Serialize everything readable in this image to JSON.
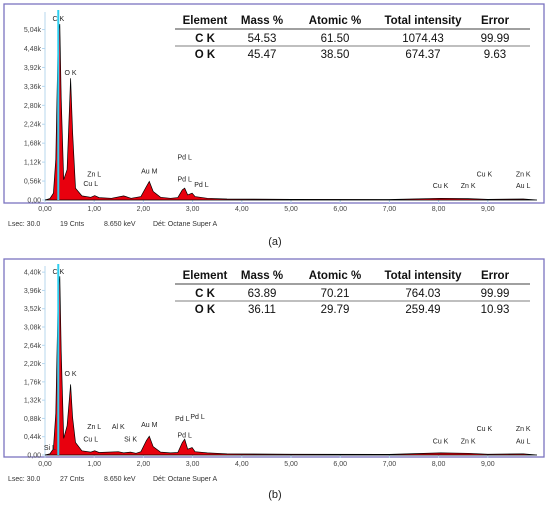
{
  "chart_data": [
    {
      "type": "area",
      "panel_label": "(a)",
      "footer": {
        "lsec": "Lsec: 30.0",
        "cnts": "19 Cnts",
        "kev": "8.650 keV",
        "det": "Dét: Octane Super A"
      },
      "x_ticks": [
        "0,00",
        "1,00",
        "2,00",
        "3,00",
        "4,00",
        "5,00",
        "6,00",
        "7,00",
        "8,00",
        "9,00"
      ],
      "y_ticks": [
        "0,00",
        "0,56k",
        "1,12k",
        "1,68k",
        "2,24k",
        "2,80k",
        "3,36k",
        "3,92k",
        "4,48k",
        "5,04k"
      ],
      "xlim": [
        0,
        10
      ],
      "ylim": [
        0,
        5.5
      ],
      "spectrum": [
        [
          0.0,
          0.0
        ],
        [
          0.1,
          0.04
        ],
        [
          0.17,
          0.2
        ],
        [
          0.22,
          1.2
        ],
        [
          0.27,
          5.0
        ],
        [
          0.3,
          5.2
        ],
        [
          0.33,
          3.0
        ],
        [
          0.38,
          0.6
        ],
        [
          0.45,
          0.9
        ],
        [
          0.52,
          3.6
        ],
        [
          0.56,
          2.0
        ],
        [
          0.62,
          0.35
        ],
        [
          0.75,
          0.12
        ],
        [
          0.93,
          0.08
        ],
        [
          1.01,
          0.13
        ],
        [
          1.1,
          0.07
        ],
        [
          1.35,
          0.05
        ],
        [
          1.6,
          0.12
        ],
        [
          1.75,
          0.05
        ],
        [
          1.95,
          0.1
        ],
        [
          2.06,
          0.4
        ],
        [
          2.12,
          0.55
        ],
        [
          2.2,
          0.25
        ],
        [
          2.35,
          0.08
        ],
        [
          2.55,
          0.05
        ],
        [
          2.7,
          0.07
        ],
        [
          2.79,
          0.3
        ],
        [
          2.84,
          0.35
        ],
        [
          2.9,
          0.15
        ],
        [
          2.99,
          0.2
        ],
        [
          3.05,
          0.1
        ],
        [
          3.3,
          0.05
        ],
        [
          3.7,
          0.03
        ],
        [
          5.0,
          0.02
        ],
        [
          7.0,
          0.015
        ],
        [
          8.04,
          0.05
        ],
        [
          8.6,
          0.04
        ],
        [
          9.0,
          0.02
        ],
        [
          9.72,
          0.03
        ],
        [
          10.0,
          0.0
        ]
      ],
      "peak_labels": [
        {
          "text": "C K",
          "x": 0.27,
          "y": 5.3
        },
        {
          "text": "O K",
          "x": 0.52,
          "y": 3.7
        },
        {
          "text": "Zn L",
          "x": 1.0,
          "y": 0.7
        },
        {
          "text": "Cu L",
          "x": 0.93,
          "y": 0.42
        },
        {
          "text": "Au M",
          "x": 2.12,
          "y": 0.78
        },
        {
          "text": "Pd L",
          "x": 2.84,
          "y": 1.2
        },
        {
          "text": "Pd L",
          "x": 2.84,
          "y": 0.55
        },
        {
          "text": "Pd L",
          "x": 3.18,
          "y": 0.38
        },
        {
          "text": "Cu K",
          "x": 8.04,
          "y": 0.35
        },
        {
          "text": "Zn K",
          "x": 8.6,
          "y": 0.35
        },
        {
          "text": "Cu K",
          "x": 8.93,
          "y": 0.7
        },
        {
          "text": "Zn K",
          "x": 9.72,
          "y": 0.7
        },
        {
          "text": "Au L",
          "x": 9.72,
          "y": 0.35
        }
      ],
      "table": {
        "headers": [
          "Element",
          "Mass %",
          "Atomic %",
          "Total intensity",
          "Error"
        ],
        "rows": [
          [
            "C K",
            "54.53",
            "61.50",
            "1074.43",
            "99.99"
          ],
          [
            "O K",
            "45.47",
            "38.50",
            "674.37",
            "9.63"
          ]
        ]
      }
    },
    {
      "type": "area",
      "panel_label": "(b)",
      "footer": {
        "lsec": "Lsec: 30.0",
        "cnts": "27 Cnts",
        "kev": "8.650 keV",
        "det": "Dét: Octane Super A"
      },
      "x_ticks": [
        "0,00",
        "1,00",
        "2,00",
        "3,00",
        "4,00",
        "5,00",
        "6,00",
        "7,00",
        "8,00",
        "9,00"
      ],
      "y_ticks": [
        "0,00",
        "0,44k",
        "0,88k",
        "1,32k",
        "1,76k",
        "2,20k",
        "2,64k",
        "3,08k",
        "3,52k",
        "3,96k",
        "4,40k"
      ],
      "xlim": [
        0,
        10
      ],
      "ylim": [
        0,
        4.5
      ],
      "spectrum": [
        [
          0.0,
          0.0
        ],
        [
          0.1,
          0.03
        ],
        [
          0.17,
          0.15
        ],
        [
          0.22,
          1.0
        ],
        [
          0.27,
          4.0
        ],
        [
          0.3,
          4.3
        ],
        [
          0.33,
          2.5
        ],
        [
          0.38,
          0.4
        ],
        [
          0.45,
          0.7
        ],
        [
          0.52,
          1.7
        ],
        [
          0.56,
          0.9
        ],
        [
          0.62,
          0.3
        ],
        [
          0.75,
          0.1
        ],
        [
          0.93,
          0.07
        ],
        [
          1.01,
          0.1
        ],
        [
          1.1,
          0.06
        ],
        [
          1.49,
          0.08
        ],
        [
          1.6,
          0.05
        ],
        [
          1.74,
          0.07
        ],
        [
          1.85,
          0.04
        ],
        [
          1.95,
          0.08
        ],
        [
          2.06,
          0.35
        ],
        [
          2.12,
          0.45
        ],
        [
          2.2,
          0.2
        ],
        [
          2.35,
          0.07
        ],
        [
          2.55,
          0.05
        ],
        [
          2.7,
          0.06
        ],
        [
          2.79,
          0.3
        ],
        [
          2.84,
          0.38
        ],
        [
          2.9,
          0.14
        ],
        [
          2.99,
          0.18
        ],
        [
          3.05,
          0.08
        ],
        [
          3.3,
          0.05
        ],
        [
          3.7,
          0.03
        ],
        [
          5.0,
          0.02
        ],
        [
          7.0,
          0.015
        ],
        [
          8.04,
          0.05
        ],
        [
          8.6,
          0.04
        ],
        [
          9.0,
          0.02
        ],
        [
          9.72,
          0.03
        ],
        [
          10.0,
          0.0
        ]
      ],
      "peak_labels": [
        {
          "text": "C K",
          "x": 0.27,
          "y": 4.35
        },
        {
          "text": "O K",
          "x": 0.52,
          "y": 1.9
        },
        {
          "text": "Si L",
          "x": 0.1,
          "y": 0.12
        },
        {
          "text": "Zn L",
          "x": 1.0,
          "y": 0.62
        },
        {
          "text": "Cu L",
          "x": 0.93,
          "y": 0.32
        },
        {
          "text": "Al K",
          "x": 1.49,
          "y": 0.62
        },
        {
          "text": "Si K",
          "x": 1.74,
          "y": 0.32
        },
        {
          "text": "Au M",
          "x": 2.12,
          "y": 0.67
        },
        {
          "text": "Pd L",
          "x": 2.79,
          "y": 0.82
        },
        {
          "text": "Pd L",
          "x": 3.1,
          "y": 0.87
        },
        {
          "text": "Pd L",
          "x": 2.84,
          "y": 0.42
        },
        {
          "text": "Cu K",
          "x": 8.04,
          "y": 0.28
        },
        {
          "text": "Zn K",
          "x": 8.6,
          "y": 0.28
        },
        {
          "text": "Cu K",
          "x": 8.93,
          "y": 0.58
        },
        {
          "text": "Zn K",
          "x": 9.72,
          "y": 0.58
        },
        {
          "text": "Au L",
          "x": 9.72,
          "y": 0.28
        }
      ],
      "table": {
        "headers": [
          "Element",
          "Mass %",
          "Atomic %",
          "Total intensity",
          "Error"
        ],
        "rows": [
          [
            "C K",
            "63.89",
            "70.21",
            "764.03",
            "99.99"
          ],
          [
            "O K",
            "36.11",
            "29.79",
            "259.49",
            "10.93"
          ]
        ]
      }
    }
  ],
  "colors": {
    "frame": "#7b73c0",
    "axis": "#b7d7ee",
    "fill": "#e8000e",
    "edge": "#000000",
    "cursor": "#2ecff0"
  }
}
